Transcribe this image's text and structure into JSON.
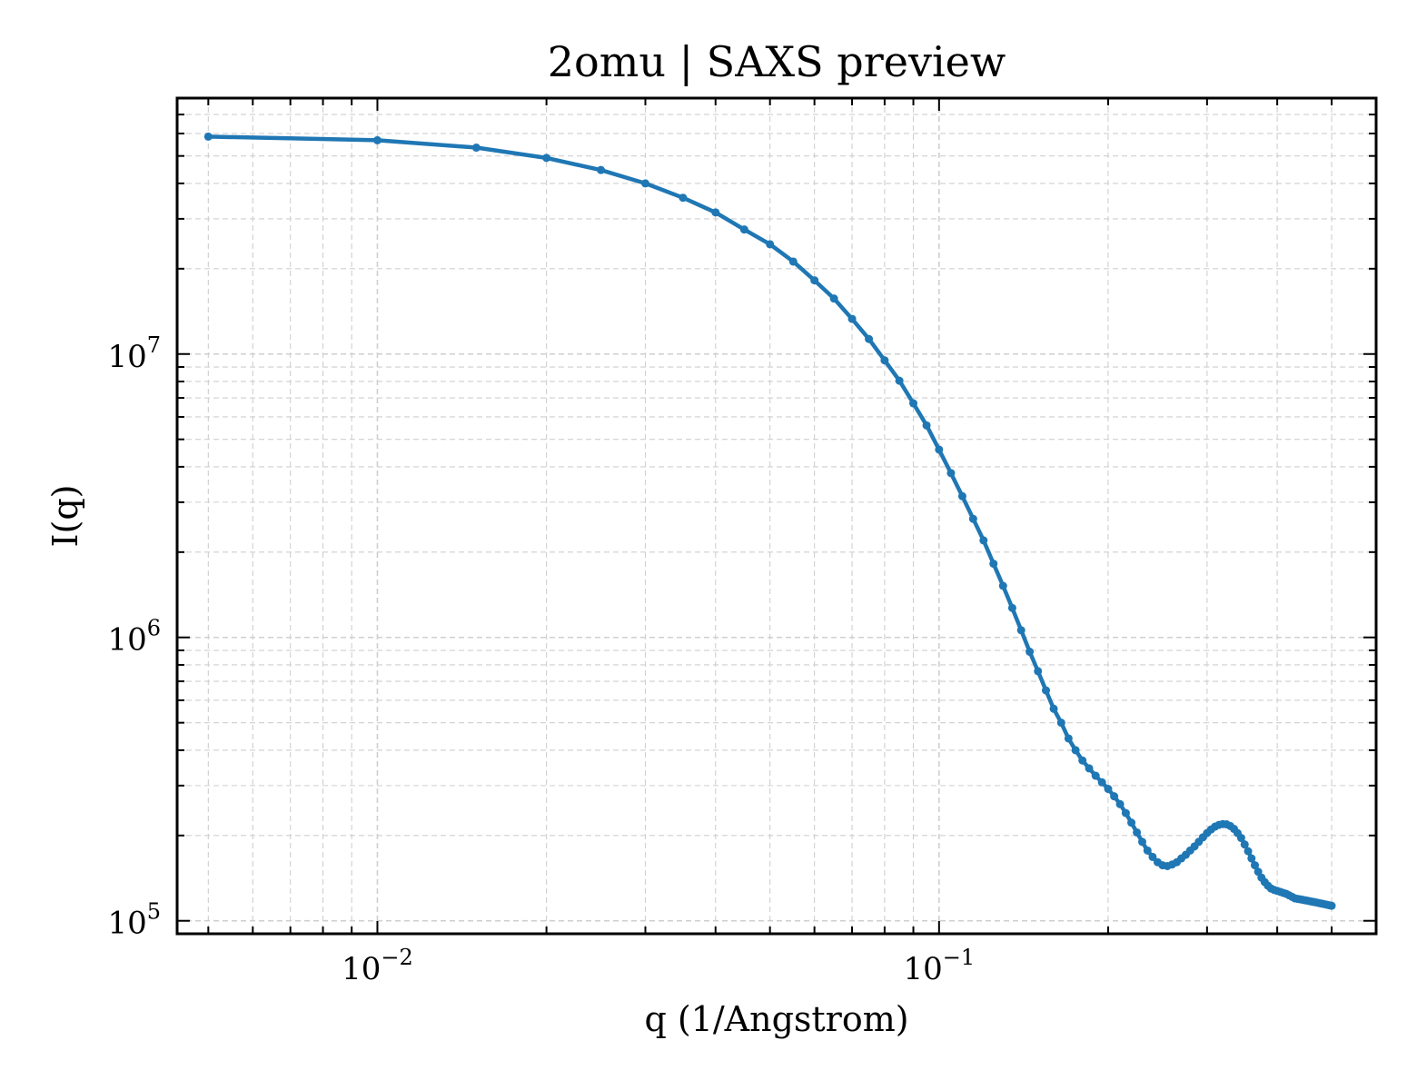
{
  "chart_data": {
    "type": "line",
    "title": "2omu | SAXS preview",
    "xlabel": "q (1/Angstrom)",
    "ylabel": "I(q)",
    "xscale": "log",
    "yscale": "log",
    "xlim": [
      0.0044,
      0.6
    ],
    "ylim": [
      90000,
      80000000
    ],
    "grid": "both (major and minor, dashed)",
    "line_color": "#1f77b4",
    "x_ticks": [
      {
        "base": "10",
        "exp": "−2",
        "value": 0.01
      },
      {
        "base": "10",
        "exp": "−1",
        "value": 0.1
      }
    ],
    "y_ticks": [
      {
        "base": "10",
        "exp": "5",
        "value": 100000
      },
      {
        "base": "10",
        "exp": "6",
        "value": 1000000
      },
      {
        "base": "10",
        "exp": "7",
        "value": 10000000
      }
    ],
    "series": [
      {
        "x": [
          0.005,
          0.01,
          0.015,
          0.02,
          0.025,
          0.03,
          0.035,
          0.04,
          0.045,
          0.05,
          0.055,
          0.06,
          0.065,
          0.07,
          0.075,
          0.08,
          0.085,
          0.09,
          0.095,
          0.1,
          0.105,
          0.11,
          0.115,
          0.12,
          0.125,
          0.13,
          0.135,
          0.14,
          0.145,
          0.15,
          0.155,
          0.16,
          0.165,
          0.17,
          0.175,
          0.18,
          0.185,
          0.19,
          0.195,
          0.2,
          0.205,
          0.21,
          0.215,
          0.22,
          0.225,
          0.23,
          0.235,
          0.24,
          0.245,
          0.25,
          0.255,
          0.26,
          0.265,
          0.27,
          0.275,
          0.28,
          0.285,
          0.29,
          0.295,
          0.3,
          0.305,
          0.31,
          0.315,
          0.32,
          0.325,
          0.33,
          0.335,
          0.34,
          0.345,
          0.35,
          0.355,
          0.36,
          0.365,
          0.37,
          0.375,
          0.38,
          0.385,
          0.39,
          0.395,
          0.4,
          0.405,
          0.41,
          0.415,
          0.42,
          0.425,
          0.43,
          0.435,
          0.44,
          0.445,
          0.45,
          0.455,
          0.46,
          0.465,
          0.47,
          0.475,
          0.48,
          0.485,
          0.49,
          0.495,
          0.5
        ],
        "y": [
          58500000,
          56800000,
          53500000,
          49200000,
          44600000,
          40000000,
          35600000,
          31600000,
          27500000,
          24400000,
          21200000,
          18200000,
          15700000,
          13300000,
          11300000,
          9500000,
          8050000,
          6700000,
          5600000,
          4600000,
          3800000,
          3150000,
          2620000,
          2200000,
          1820000,
          1520000,
          1270000,
          1060000,
          890000,
          760000,
          650000,
          560000,
          500000,
          440000,
          400000,
          368000,
          345000,
          325000,
          308000,
          292000,
          275000,
          258000,
          240000,
          222000,
          205000,
          190000,
          177000,
          168000,
          161000,
          157000,
          156000,
          158000,
          161000,
          166000,
          171000,
          177000,
          183000,
          190000,
          197000,
          204000,
          210000,
          215000,
          218000,
          219500,
          219000,
          216000,
          211000,
          204000,
          196000,
          186000,
          176000,
          166000,
          157000,
          149000,
          142000,
          137000,
          133000,
          130000,
          128500,
          127500,
          126500,
          125500,
          124500,
          123000,
          121500,
          120000,
          119500,
          119000,
          118500,
          118000,
          117500,
          117000,
          116500,
          116000,
          115500,
          115000,
          114500,
          114000,
          113500,
          113000
        ]
      }
    ]
  }
}
